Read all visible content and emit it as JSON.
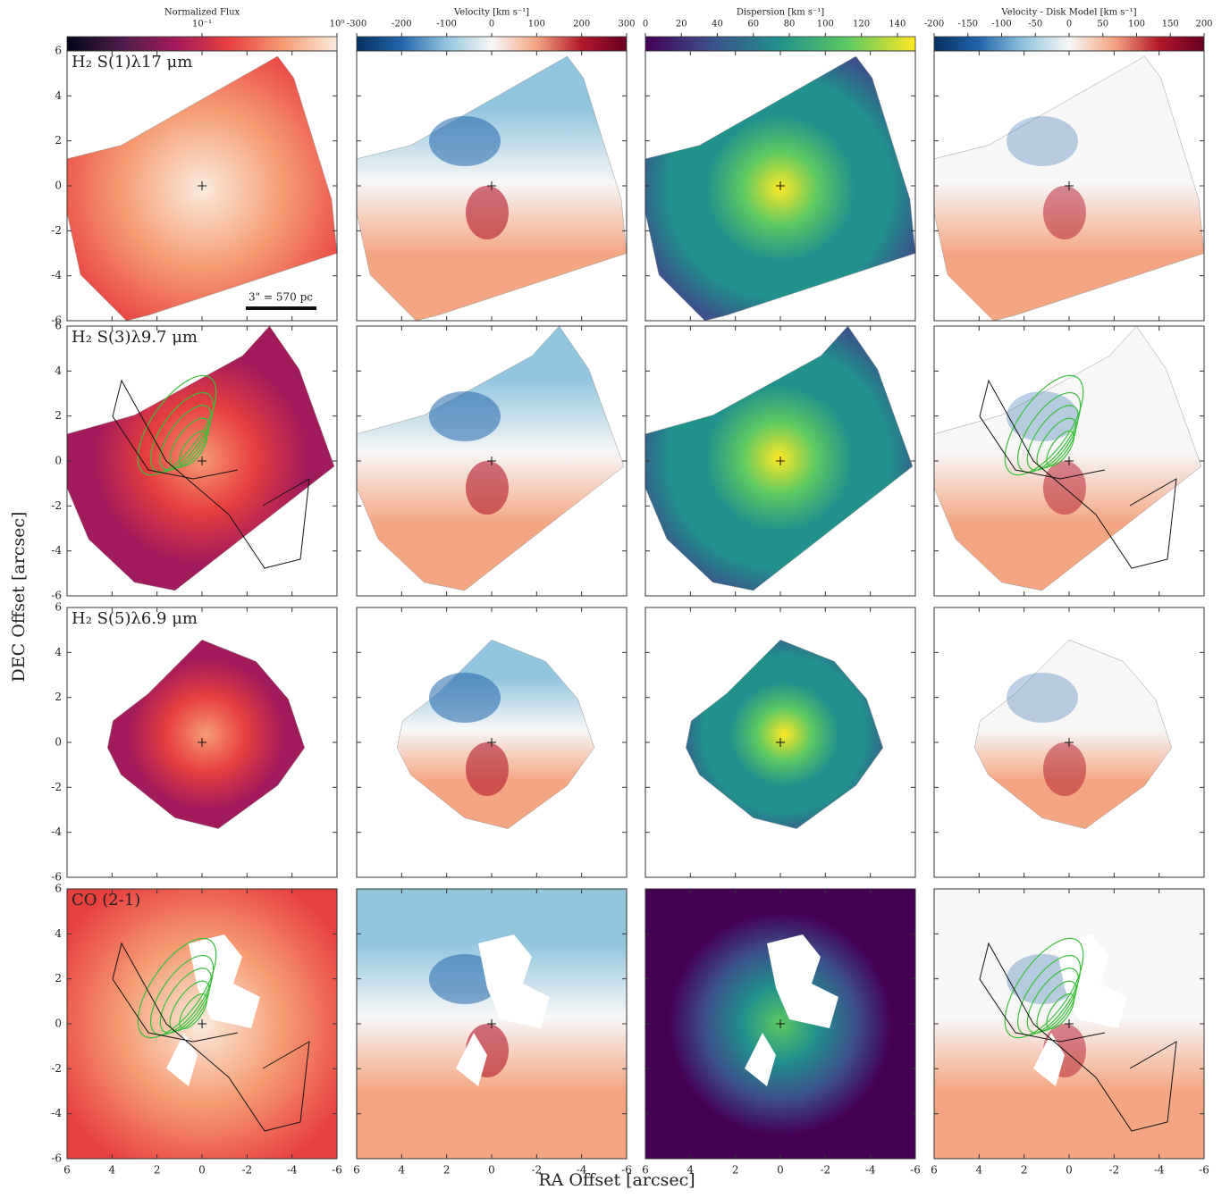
{
  "chart_data": {
    "type": "image-grid",
    "x_label": "RA Offset [arcsec]",
    "y_label": "DEC Offset [arcsec]",
    "xlim": [
      6,
      -6
    ],
    "ylim": [
      -6,
      6
    ],
    "xticks": [
      6,
      4,
      2,
      0,
      -2,
      -4,
      -6
    ],
    "yticks": [
      -6,
      -4,
      -2,
      0,
      2,
      4,
      6
    ],
    "scale_bar": "3\" = 570 pc",
    "rows": [
      "H₂ S(1)λ17 μm",
      "H₂ S(3)λ9.7 μm",
      "H₂ S(5)λ6.9 μm",
      "CO (2-1)"
    ],
    "colorbars": [
      {
        "label": "Normalized Flux",
        "log": true,
        "lim": [
          0.01,
          1
        ],
        "ticks": [
          {
            "value": 0.1,
            "label": "10⁻¹"
          },
          {
            "value": 1,
            "label": "10⁰"
          }
        ],
        "colors": [
          "#03051a",
          "#4c1d4b",
          "#a11a5b",
          "#e83f3f",
          "#f69c73",
          "#faebdd"
        ]
      },
      {
        "label": "Velocity [km s⁻¹]",
        "log": false,
        "lim": [
          -300,
          300
        ],
        "ticks": [
          -300,
          -200,
          -100,
          0,
          100,
          200,
          300
        ],
        "colors": [
          "#053061",
          "#2166ac",
          "#92c5de",
          "#f7f7f7",
          "#f4a582",
          "#b2182b",
          "#67001f"
        ]
      },
      {
        "label": "Dispersion [km s⁻¹]",
        "log": false,
        "lim": [
          0,
          150
        ],
        "ticks": [
          0,
          20,
          40,
          60,
          80,
          100,
          120,
          140
        ],
        "colors": [
          "#440154",
          "#3b528b",
          "#21918c",
          "#5ec962",
          "#fde725"
        ]
      },
      {
        "label": "Velocity - Disk Model [km s⁻¹]",
        "log": false,
        "lim": [
          -200,
          200
        ],
        "ticks": [
          -200,
          -150,
          -100,
          -50,
          0,
          50,
          100,
          150,
          200
        ],
        "colors": [
          "#053061",
          "#2166ac",
          "#92c5de",
          "#f7f7f7",
          "#f4a582",
          "#b2182b",
          "#67001f"
        ]
      }
    ]
  }
}
